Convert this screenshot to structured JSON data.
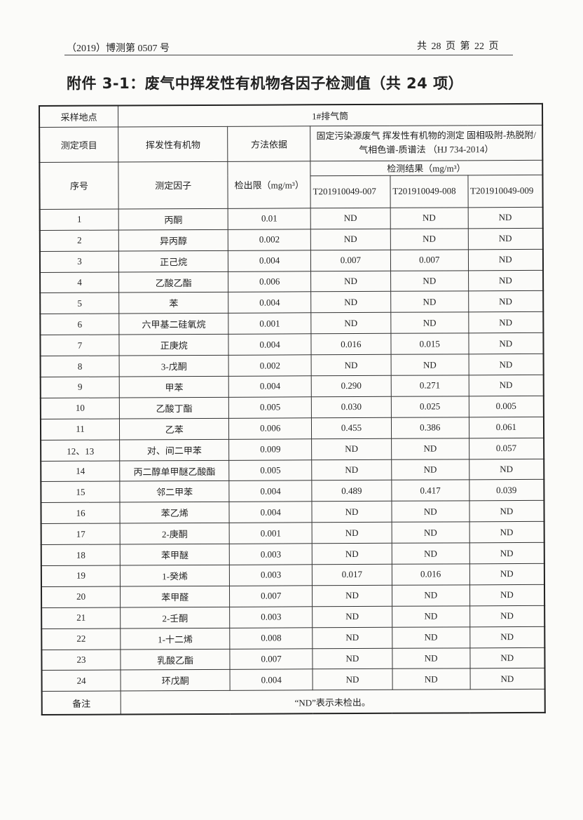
{
  "header": {
    "report_no": "（2019）博测第 0507 号",
    "page_info": "共 28 页  第 22 页"
  },
  "title": "附件 3-1：废气中挥发性有机物各因子检测值（共 24 项）",
  "table": {
    "site_label": "采样地点",
    "site_value": "1#排气筒",
    "item_label": "测定项目",
    "item_value": "挥发性有机物",
    "method_label": "方法依据",
    "method_value": "固定污染源废气 挥发性有机物的测定 固相吸附-热脱附/气相色谱-质谱法 （HJ 734-2014）",
    "seq_label": "序号",
    "factor_label": "测定因子",
    "limit_label": "检出限（mg/m³）",
    "result_label": "检测结果（mg/m³）",
    "samples": [
      "T201910049-007",
      "T201910049-008",
      "T201910049-009"
    ],
    "rows": [
      {
        "no": "1",
        "name": "丙酮",
        "limit": "0.01",
        "r": [
          "ND",
          "ND",
          "ND"
        ]
      },
      {
        "no": "2",
        "name": "异丙醇",
        "limit": "0.002",
        "r": [
          "ND",
          "ND",
          "ND"
        ]
      },
      {
        "no": "3",
        "name": "正己烷",
        "limit": "0.004",
        "r": [
          "0.007",
          "0.007",
          "ND"
        ]
      },
      {
        "no": "4",
        "name": "乙酸乙酯",
        "limit": "0.006",
        "r": [
          "ND",
          "ND",
          "ND"
        ]
      },
      {
        "no": "5",
        "name": "苯",
        "limit": "0.004",
        "r": [
          "ND",
          "ND",
          "ND"
        ]
      },
      {
        "no": "6",
        "name": "六甲基二硅氧烷",
        "limit": "0.001",
        "r": [
          "ND",
          "ND",
          "ND"
        ]
      },
      {
        "no": "7",
        "name": "正庚烷",
        "limit": "0.004",
        "r": [
          "0.016",
          "0.015",
          "ND"
        ]
      },
      {
        "no": "8",
        "name": "3-戊酮",
        "limit": "0.002",
        "r": [
          "ND",
          "ND",
          "ND"
        ]
      },
      {
        "no": "9",
        "name": "甲苯",
        "limit": "0.004",
        "r": [
          "0.290",
          "0.271",
          "ND"
        ]
      },
      {
        "no": "10",
        "name": "乙酸丁酯",
        "limit": "0.005",
        "r": [
          "0.030",
          "0.025",
          "0.005"
        ]
      },
      {
        "no": "11",
        "name": "乙苯",
        "limit": "0.006",
        "r": [
          "0.455",
          "0.386",
          "0.061"
        ]
      },
      {
        "no": "12、13",
        "name": "对、间二甲苯",
        "limit": "0.009",
        "r": [
          "ND",
          "ND",
          "0.057"
        ]
      },
      {
        "no": "14",
        "name": "丙二醇单甲醚乙酸酯",
        "limit": "0.005",
        "r": [
          "ND",
          "ND",
          "ND"
        ]
      },
      {
        "no": "15",
        "name": "邻二甲苯",
        "limit": "0.004",
        "r": [
          "0.489",
          "0.417",
          "0.039"
        ]
      },
      {
        "no": "16",
        "name": "苯乙烯",
        "limit": "0.004",
        "r": [
          "ND",
          "ND",
          "ND"
        ]
      },
      {
        "no": "17",
        "name": "2-庚酮",
        "limit": "0.001",
        "r": [
          "ND",
          "ND",
          "ND"
        ]
      },
      {
        "no": "18",
        "name": "苯甲醚",
        "limit": "0.003",
        "r": [
          "ND",
          "ND",
          "ND"
        ]
      },
      {
        "no": "19",
        "name": "1-癸烯",
        "limit": "0.003",
        "r": [
          "0.017",
          "0.016",
          "ND"
        ]
      },
      {
        "no": "20",
        "name": "苯甲醛",
        "limit": "0.007",
        "r": [
          "ND",
          "ND",
          "ND"
        ]
      },
      {
        "no": "21",
        "name": "2-壬酮",
        "limit": "0.003",
        "r": [
          "ND",
          "ND",
          "ND"
        ]
      },
      {
        "no": "22",
        "name": "1-十二烯",
        "limit": "0.008",
        "r": [
          "ND",
          "ND",
          "ND"
        ]
      },
      {
        "no": "23",
        "name": "乳酸乙酯",
        "limit": "0.007",
        "r": [
          "ND",
          "ND",
          "ND"
        ]
      },
      {
        "no": "24",
        "name": "环戊酮",
        "limit": "0.004",
        "r": [
          "ND",
          "ND",
          "ND"
        ]
      }
    ],
    "remark_label": "备注",
    "remark_value": "“ND”表示未检出。"
  }
}
